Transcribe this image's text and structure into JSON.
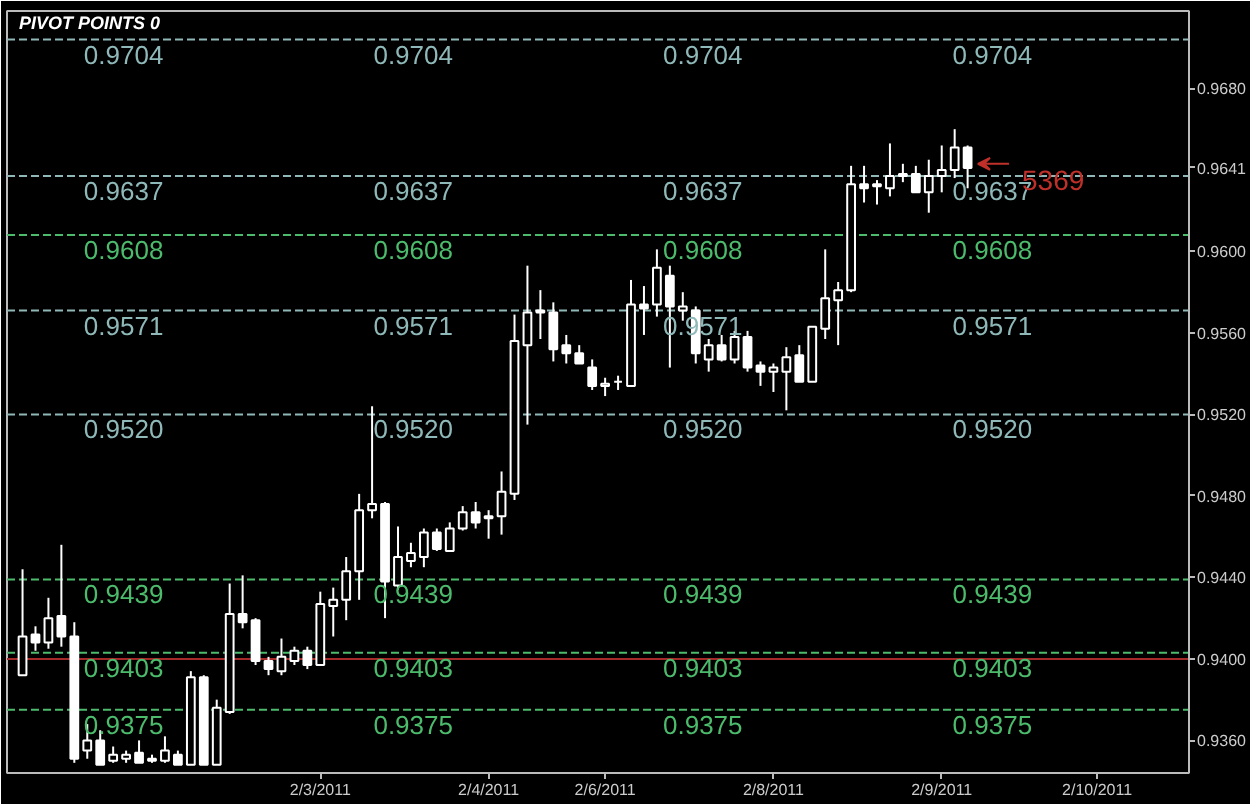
{
  "chart_data": {
    "type": "candlestick",
    "title": "PIVOT POINTS 0",
    "categories": [
      null,
      null,
      null,
      null,
      null,
      null,
      null,
      null,
      null,
      null,
      null,
      null,
      null,
      null,
      null,
      null,
      null,
      null,
      null,
      null,
      null,
      null,
      null,
      "2/3/2011",
      null,
      null,
      null,
      null,
      null,
      null,
      null,
      null,
      null,
      null,
      null,
      null,
      "2/4/2011",
      null,
      null,
      null,
      null,
      null,
      null,
      null,
      null,
      "2/6/2011",
      null,
      null,
      null,
      null,
      null,
      null,
      null,
      null,
      null,
      null,
      null,
      null,
      "2/8/2011",
      null,
      null,
      null,
      null,
      null,
      null,
      null,
      null,
      null,
      null,
      null,
      null,
      "2/9/2011",
      null,
      null,
      null,
      null,
      null,
      null,
      null,
      null,
      null,
      null,
      null,
      "2/10/2011",
      null,
      null,
      null,
      null,
      null,
      null,
      null
    ],
    "series": [
      {
        "color": "#ffffff",
        "ohlc": [
          [
            0.9392,
            0.9444,
            0.9392,
            0.9411
          ],
          [
            0.9412,
            0.9416,
            0.9404,
            0.9408
          ],
          [
            0.9408,
            0.943,
            0.9405,
            0.942
          ],
          [
            0.9421,
            0.9456,
            0.9406,
            0.9411
          ],
          [
            0.9411,
            0.9418,
            0.9349,
            0.9351
          ],
          [
            0.9355,
            0.9368,
            0.9351,
            0.936
          ],
          [
            0.936,
            0.9365,
            0.9348,
            0.9348
          ],
          [
            0.935,
            0.9357,
            0.9349,
            0.9353
          ],
          [
            0.9351,
            0.9355,
            0.9349,
            0.9353
          ],
          [
            0.9354,
            0.936,
            0.9349,
            0.9349
          ],
          [
            0.935,
            0.9353,
            0.9349,
            0.9351
          ],
          [
            0.935,
            0.9362,
            0.9349,
            0.9355
          ],
          [
            0.9353,
            0.9355,
            0.9348,
            0.9348
          ],
          [
            0.9348,
            0.9394,
            0.9348,
            0.9391
          ],
          [
            0.9391,
            0.9392,
            0.9348,
            0.9348
          ],
          [
            0.9348,
            0.938,
            0.9348,
            0.9376
          ],
          [
            0.9374,
            0.9437,
            0.9373,
            0.9422
          ],
          [
            0.9422,
            0.9441,
            0.9415,
            0.9418
          ],
          [
            0.9419,
            0.942,
            0.9397,
            0.9399
          ],
          [
            0.9399,
            0.9401,
            0.9392,
            0.9395
          ],
          [
            0.9394,
            0.941,
            0.9392,
            0.9401
          ],
          [
            0.9399,
            0.9406,
            0.9397,
            0.9404
          ],
          [
            0.9404,
            0.9406,
            0.9395,
            0.9397
          ],
          [
            0.9397,
            0.9433,
            0.9397,
            0.9427
          ],
          [
            0.9426,
            0.9435,
            0.9411,
            0.9429
          ],
          [
            0.9429,
            0.945,
            0.9419,
            0.9443
          ],
          [
            0.9443,
            0.9481,
            0.9429,
            0.9473
          ],
          [
            0.9473,
            0.9524,
            0.9469,
            0.9476
          ],
          [
            0.9476,
            0.9477,
            0.942,
            0.9438
          ],
          [
            0.9436,
            0.9465,
            0.9434,
            0.945
          ],
          [
            0.9448,
            0.9457,
            0.9445,
            0.9452
          ],
          [
            0.945,
            0.9464,
            0.9445,
            0.9462
          ],
          [
            0.9462,
            0.9464,
            0.9453,
            0.9454
          ],
          [
            0.9453,
            0.9467,
            0.9453,
            0.9464
          ],
          [
            0.9464,
            0.9475,
            0.9463,
            0.9472
          ],
          [
            0.9472,
            0.9477,
            0.9464,
            0.9467
          ],
          [
            0.9469,
            0.9473,
            0.9459,
            0.947
          ],
          [
            0.947,
            0.9492,
            0.9461,
            0.9482
          ],
          [
            0.9481,
            0.9569,
            0.9478,
            0.9556
          ],
          [
            0.9554,
            0.9593,
            0.9515,
            0.957
          ],
          [
            0.957,
            0.9581,
            0.9557,
            0.9571
          ],
          [
            0.957,
            0.9575,
            0.9546,
            0.9552
          ],
          [
            0.9554,
            0.9559,
            0.9545,
            0.955
          ],
          [
            0.955,
            0.9554,
            0.9545,
            0.9545
          ],
          [
            0.9543,
            0.9547,
            0.9532,
            0.9534
          ],
          [
            0.9534,
            0.9538,
            0.9529,
            0.9535
          ],
          [
            0.9536,
            0.9539,
            0.9532,
            0.9536
          ],
          [
            0.9534,
            0.9586,
            0.9534,
            0.9574
          ],
          [
            0.9574,
            0.9583,
            0.9559,
            0.9572
          ],
          [
            0.9574,
            0.9601,
            0.9568,
            0.9592
          ],
          [
            0.9588,
            0.9593,
            0.9543,
            0.9573
          ],
          [
            0.9571,
            0.958,
            0.9566,
            0.9573
          ],
          [
            0.9571,
            0.9573,
            0.9545,
            0.955
          ],
          [
            0.9547,
            0.9557,
            0.9541,
            0.9554
          ],
          [
            0.9554,
            0.9559,
            0.9546,
            0.9547
          ],
          [
            0.9547,
            0.9561,
            0.9545,
            0.9558
          ],
          [
            0.9558,
            0.9561,
            0.9541,
            0.9543
          ],
          [
            0.9544,
            0.9546,
            0.9534,
            0.9541
          ],
          [
            0.9541,
            0.9545,
            0.9531,
            0.9543
          ],
          [
            0.9541,
            0.9553,
            0.9522,
            0.9548
          ],
          [
            0.9549,
            0.9554,
            0.9536,
            0.9536
          ],
          [
            0.9536,
            0.9563,
            0.9536,
            0.9563
          ],
          [
            0.9562,
            0.9601,
            0.9557,
            0.9577
          ],
          [
            0.9576,
            0.9585,
            0.9554,
            0.9581
          ],
          [
            0.9581,
            0.9642,
            0.958,
            0.9633
          ],
          [
            0.9633,
            0.9642,
            0.9624,
            0.9631
          ],
          [
            0.9632,
            0.9635,
            0.9623,
            0.9633
          ],
          [
            0.9631,
            0.9653,
            0.9627,
            0.9637
          ],
          [
            0.9637,
            0.9643,
            0.9634,
            0.9638
          ],
          [
            0.9638,
            0.9642,
            0.9629,
            0.9629
          ],
          [
            0.9629,
            0.9645,
            0.9619,
            0.9637
          ],
          [
            0.9637,
            0.9652,
            0.9629,
            0.964
          ],
          [
            0.964,
            0.966,
            0.9636,
            0.9651
          ],
          [
            0.9651,
            0.9652,
            0.9631,
            0.9641
          ],
          null,
          null,
          null,
          null,
          null,
          null,
          null,
          null,
          null,
          null,
          null,
          null,
          null,
          null,
          null,
          null,
          null
        ]
      }
    ],
    "ylim": [
      0.9344,
      0.9718
    ],
    "yticks": [
      {
        "value": 0.936,
        "label": "0.9360"
      },
      {
        "value": 0.94,
        "label": "0.9400"
      },
      {
        "value": 0.944,
        "label": "0.9440"
      },
      {
        "value": 0.948,
        "label": "0.9480"
      },
      {
        "value": 0.952,
        "label": "0.9520"
      },
      {
        "value": 0.956,
        "label": "0.9560"
      },
      {
        "value": 0.96,
        "label": "0.9600"
      },
      {
        "value": 0.9641,
        "label": "0.9641"
      },
      {
        "value": 0.968,
        "label": "0.9680"
      }
    ],
    "ref_lines": [
      {
        "axis": "y",
        "value": 0.9704,
        "label": "0.9704",
        "color": "#8fb8b8",
        "line_style": "dashed"
      },
      {
        "axis": "y",
        "value": 0.9637,
        "label": "0.9637",
        "color": "#8fb8b8",
        "line_style": "dashed"
      },
      {
        "axis": "y",
        "value": 0.9608,
        "label": "0.9608",
        "color": "#4cbb6c",
        "line_style": "dashed"
      },
      {
        "axis": "y",
        "value": 0.9571,
        "label": "0.9571",
        "color": "#8fb8b8",
        "line_style": "dashed"
      },
      {
        "axis": "y",
        "value": 0.952,
        "label": "0.9520",
        "color": "#8fb8b8",
        "line_style": "dashed"
      },
      {
        "axis": "y",
        "value": 0.9439,
        "label": "0.9439",
        "color": "#4cbb6c",
        "line_style": "dashed"
      },
      {
        "axis": "y",
        "value": 0.9403,
        "label": "0.9403",
        "color": "#4cbb6c",
        "line_style": "dashed"
      },
      {
        "axis": "y",
        "value": 0.94,
        "color": "#a52a2a",
        "line_style": "solid"
      },
      {
        "axis": "y",
        "value": 0.9375,
        "label": "0.9375",
        "color": "#4cbb6c",
        "line_style": "dashed"
      }
    ],
    "annotations": [
      {
        "text": "5369",
        "y": 0.9641
      }
    ],
    "grid": false
  }
}
